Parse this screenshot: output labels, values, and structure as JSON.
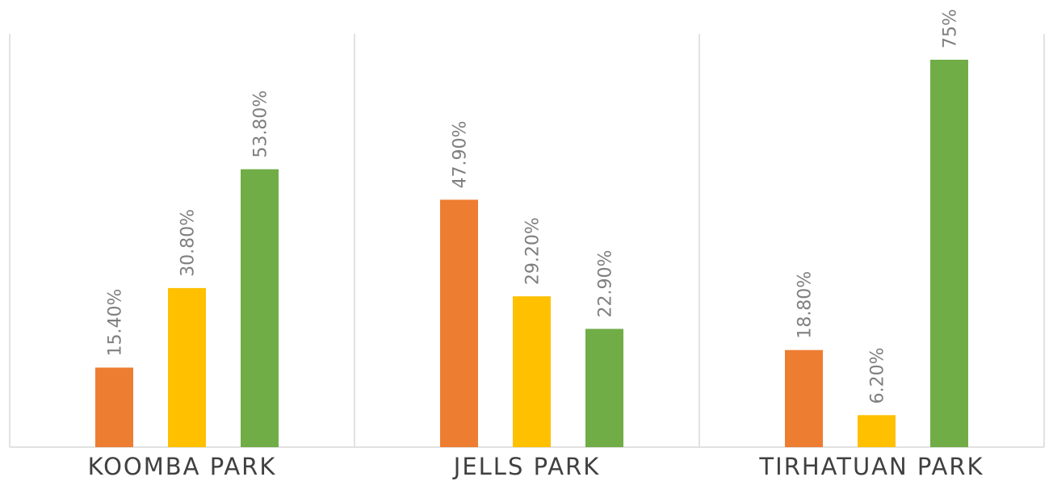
{
  "chart_data": {
    "type": "bar",
    "categories": [
      "KOOMBA PARK",
      "JELLS PARK",
      "TIRHATUAN PARK"
    ],
    "series": [
      {
        "color": "#ED7D31",
        "values": [
          15.4,
          47.9,
          18.8
        ],
        "labels": [
          "15.40%",
          "47.90%",
          "18.80%"
        ]
      },
      {
        "color": "#FFC000",
        "values": [
          30.8,
          29.2,
          6.2
        ],
        "labels": [
          "30.80%",
          "29.20%",
          "6.20%"
        ]
      },
      {
        "color": "#70AD47",
        "values": [
          53.8,
          22.9,
          75
        ],
        "labels": [
          "53.80%",
          "22.90%",
          "75%"
        ]
      }
    ],
    "ylim": [
      0,
      79
    ],
    "grid": false,
    "legend": "none",
    "gridline_color": "#d9d9d9",
    "label_color": "#7f7f7f",
    "category_label_color": "#404040"
  }
}
